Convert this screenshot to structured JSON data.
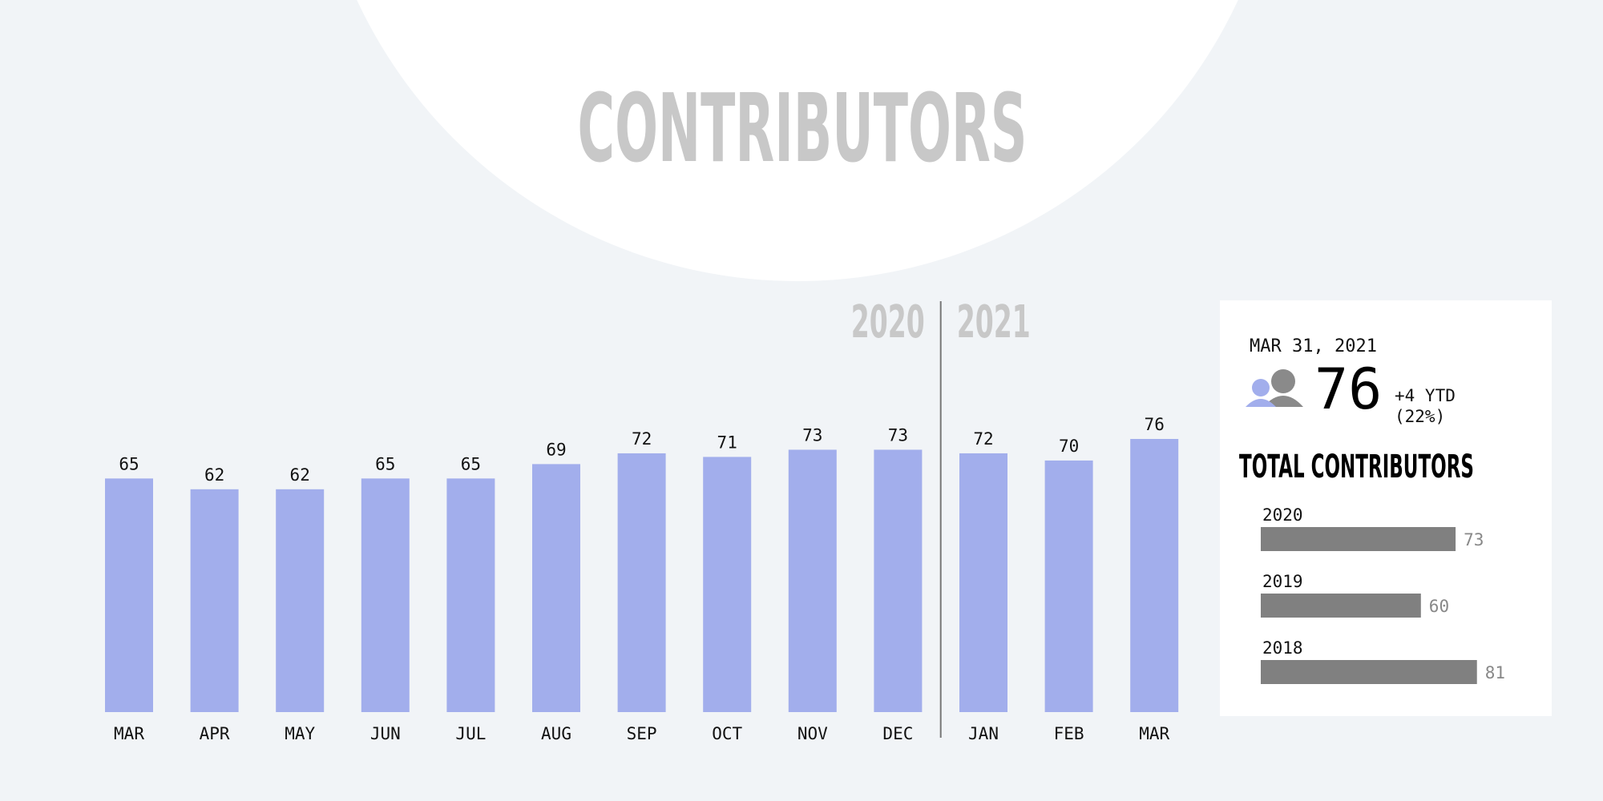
{
  "title": "CONTRIBUTORS",
  "chart_data": [
    {
      "type": "bar",
      "color": "#a2aeec",
      "groups": [
        {
          "name": "2020",
          "categories": [
            "MAR",
            "APR",
            "MAY",
            "JUN",
            "JUL",
            "AUG",
            "SEP",
            "OCT",
            "NOV",
            "DEC"
          ],
          "values": [
            65,
            62,
            62,
            65,
            65,
            69,
            72,
            71,
            73,
            73
          ]
        },
        {
          "name": "2021",
          "categories": [
            "JAN",
            "FEB",
            "MAR"
          ],
          "values": [
            72,
            70,
            76
          ]
        }
      ]
    },
    {
      "type": "hbar",
      "title": "TOTAL CONTRIBUTORS",
      "color": "#808080",
      "categories": [
        "2020",
        "2019",
        "2018"
      ],
      "values": [
        73,
        60,
        81
      ]
    }
  ],
  "stat": {
    "date": "MAR 31, 2021",
    "value": 76,
    "change": "+4 YTD",
    "change_pct": "(22%)"
  }
}
